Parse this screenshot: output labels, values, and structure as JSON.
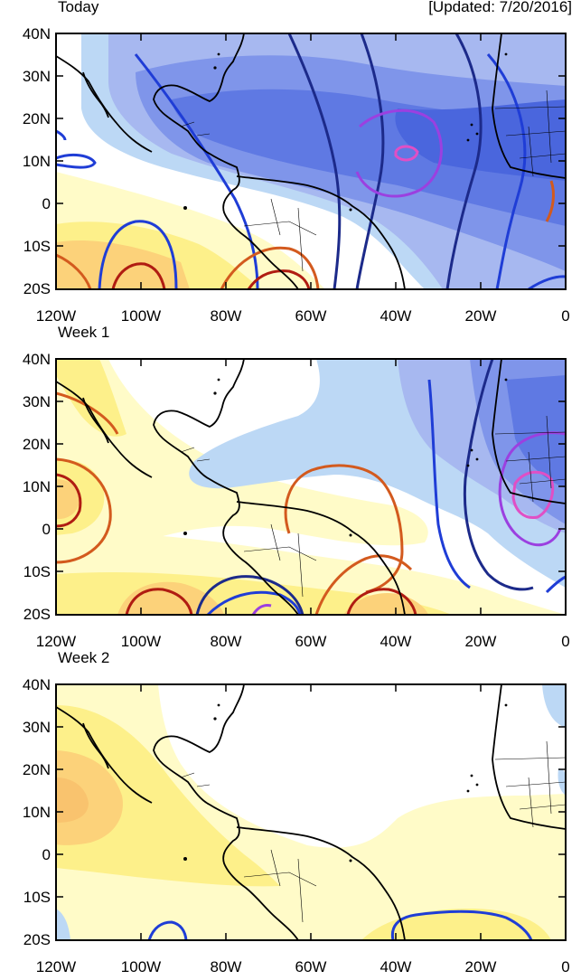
{
  "updated": "[Updated: 7/20/2016]",
  "lat_labels": [
    "40N",
    "30N",
    "20N",
    "10N",
    "0",
    "10S",
    "20S"
  ],
  "lon_labels": [
    "120W",
    "100W",
    "80W",
    "60W",
    "40W",
    "20W",
    "0"
  ],
  "panels": [
    {
      "title": "Today"
    },
    {
      "title": "Week 1"
    },
    {
      "title": "Week 2"
    }
  ]
}
